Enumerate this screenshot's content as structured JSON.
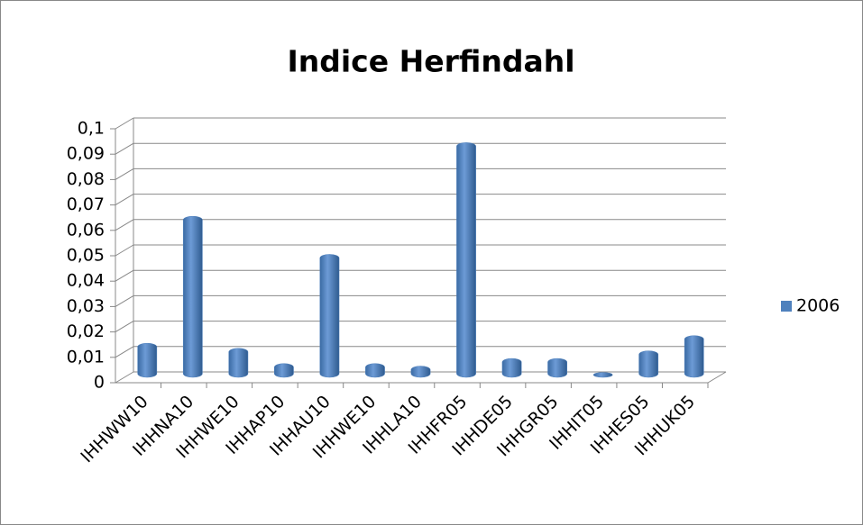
{
  "chart_data": {
    "type": "bar",
    "title": "Indice Herfindahl",
    "categories": [
      "IHHWW10",
      "IHHNA10",
      "IHHWE10",
      "IHHAP10",
      "IHHAU10",
      "IHHWE10",
      "IHHLA10",
      "IHHFR05",
      "IHHDE05",
      "IHHGR05",
      "IHHIT05",
      "IHHES05",
      "IHHUK05"
    ],
    "series": [
      {
        "name": "2006",
        "color": "#4f81bd",
        "values": [
          0.012,
          0.062,
          0.01,
          0.004,
          0.047,
          0.004,
          0.003,
          0.091,
          0.006,
          0.006,
          0.0005,
          0.009,
          0.015
        ]
      }
    ],
    "ylim": [
      0,
      0.1
    ],
    "yticks": [
      0,
      {
        "value": 0.01,
        "label": "0,01"
      },
      {
        "value": 0.02,
        "label": "0,02"
      },
      {
        "value": 0.03,
        "label": "0,03"
      },
      {
        "value": 0.04,
        "label": "0,04"
      },
      {
        "value": 0.05,
        "label": "0,05"
      },
      {
        "value": 0.06,
        "label": "0,06"
      },
      {
        "value": 0.07,
        "label": "0,07"
      },
      {
        "value": 0.08,
        "label": "0,08"
      },
      {
        "value": 0.09,
        "label": "0,09"
      },
      {
        "value": 0.1,
        "label": "0,1"
      }
    ],
    "grid": true,
    "legend": "right"
  }
}
